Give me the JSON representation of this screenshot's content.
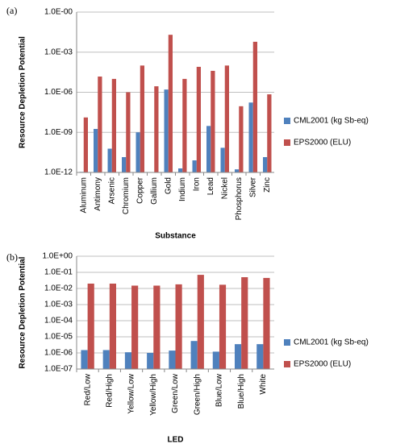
{
  "chart_data": [
    {
      "type": "bar",
      "panel_label": "(a)",
      "y_label": "Resource Depletion Potential",
      "x_label": "Substance",
      "log_scale": true,
      "grid": true,
      "categories": [
        "Aluminum",
        "Antimony",
        "Arsenic",
        "Chromium",
        "Copper",
        "Gallium",
        "Gold",
        "Indium",
        "Iron",
        "Lead",
        "Nickel",
        "Phosphorus",
        "Silver",
        "Zinc"
      ],
      "series": [
        {
          "name": "CML2001 (kg Sb-eq)",
          "color": "#4f81bd",
          "values": [
            1.1e-12,
            1.8e-09,
            6e-11,
            1.4e-11,
            1e-09,
            1e-12,
            1.6e-06,
            2e-12,
            8e-12,
            3e-09,
            7e-11,
            1.7e-12,
            1.7e-07,
            1.4e-11
          ]
        },
        {
          "name": "EPS2000 (ELU)",
          "color": "#c0504d",
          "values": [
            1.3e-08,
            1.5e-05,
            1e-05,
            1e-06,
            0.0001,
            2.8e-06,
            0.02,
            1e-05,
            8e-05,
            4e-05,
            0.0001,
            9e-08,
            0.006,
            7e-07
          ]
        }
      ],
      "ylim": [
        1e-12,
        1
      ],
      "yticks": [
        {
          "value": 1e-12,
          "label": "1.0E-12"
        },
        {
          "value": 1e-09,
          "label": "1.0E-09"
        },
        {
          "value": 1e-06,
          "label": "1.0E-06"
        },
        {
          "value": 0.001,
          "label": "1.0E-03"
        },
        {
          "value": 1,
          "label": "1.0E-00"
        }
      ]
    },
    {
      "type": "bar",
      "panel_label": "(b)",
      "y_label": "Resource Depletion Potential",
      "x_label": "LED",
      "log_scale": true,
      "grid": true,
      "categories": [
        "Red/Low",
        "Red/High",
        "Yellow/Low",
        "Yellow/High",
        "Green/Low",
        "Green/High",
        "Blue/Low",
        "Blue/High",
        "White"
      ],
      "series": [
        {
          "name": "CML2001 (kg Sb-eq)",
          "color": "#4f81bd",
          "values": [
            1.5e-06,
            1.5e-06,
            1.1e-06,
            1e-06,
            1.4e-06,
            5.5e-06,
            1.2e-06,
            3.5e-06,
            3.5e-06
          ]
        },
        {
          "name": "EPS2000 (ELU)",
          "color": "#c0504d",
          "values": [
            0.02,
            0.02,
            0.015,
            0.015,
            0.018,
            0.07,
            0.017,
            0.05,
            0.045
          ]
        }
      ],
      "ylim": [
        1e-07,
        1
      ],
      "yticks": [
        {
          "value": 1e-07,
          "label": "1.0E-07"
        },
        {
          "value": 1e-06,
          "label": "1.0E-06"
        },
        {
          "value": 1e-05,
          "label": "1.0E-05"
        },
        {
          "value": 0.0001,
          "label": "1.0E-04"
        },
        {
          "value": 0.001,
          "label": "1.0E-03"
        },
        {
          "value": 0.01,
          "label": "1.0E-02"
        },
        {
          "value": 0.1,
          "label": "1.0E-01"
        },
        {
          "value": 1,
          "label": "1.0E+00"
        }
      ]
    }
  ]
}
